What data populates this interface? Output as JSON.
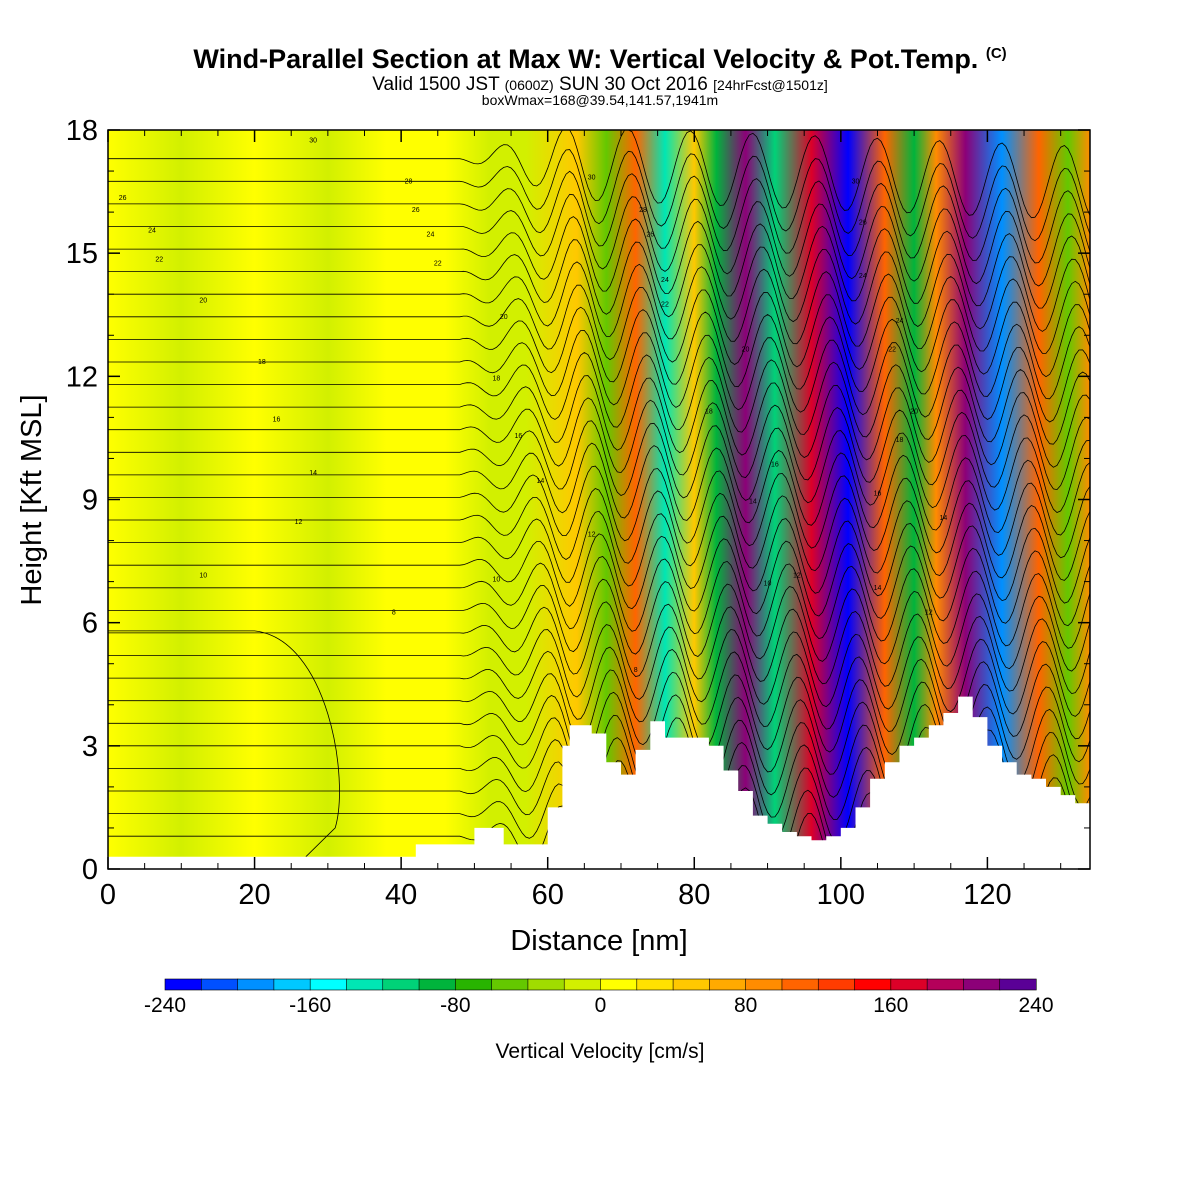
{
  "header": {
    "title": "Wind-Parallel Section at Max W: Vertical Velocity & Pot.Temp.",
    "copyright": "(C)",
    "valid_a": "Valid 1500 JST",
    "valid_utc": "(0600Z)",
    "valid_b": "SUN 30 Oct 2016",
    "forecast": "[24hrFcst@1501z]",
    "box_info": "boxWmax=168@39.54,141.57,1941m"
  },
  "chart_data": {
    "type": "heatmap",
    "xlabel": "Distance [nm]",
    "ylabel": "Height [Kft MSL]",
    "xlim": [
      0,
      134
    ],
    "ylim": [
      0,
      18
    ],
    "x_ticks": [
      0,
      20,
      40,
      60,
      80,
      100,
      120
    ],
    "y_ticks": [
      0,
      3,
      6,
      9,
      12,
      15,
      18
    ],
    "colorbar": {
      "label": "Vertical Velocity [cm/s]",
      "min": -240,
      "max": 240,
      "tick_values": [
        -240,
        -160,
        -80,
        0,
        80,
        160,
        240
      ],
      "tick_labels": [
        "-240",
        "-160",
        "-80",
        "0",
        "80",
        "160",
        "240"
      ],
      "colors": [
        "#0000ff",
        "#0050ff",
        "#0090ff",
        "#00c8ff",
        "#00ffff",
        "#00e6b4",
        "#00d278",
        "#00b43c",
        "#28b400",
        "#64c800",
        "#a0dc00",
        "#d2f000",
        "#ffff00",
        "#ffe100",
        "#ffc800",
        "#ffaa00",
        "#ff8c00",
        "#ff6400",
        "#ff3c00",
        "#ff0000",
        "#dc0028",
        "#b4005a",
        "#8c0078",
        "#5a0096"
      ]
    },
    "vertical_velocity_bands": [
      {
        "x": 57,
        "w": -20
      },
      {
        "x": 64,
        "w": 40
      },
      {
        "x": 68,
        "w": -60
      },
      {
        "x": 72,
        "w": 110
      },
      {
        "x": 76,
        "w": -130
      },
      {
        "x": 80,
        "w": 40
      },
      {
        "x": 83,
        "w": -90
      },
      {
        "x": 87,
        "w": 200
      },
      {
        "x": 91,
        "w": -110
      },
      {
        "x": 96,
        "w": 170
      },
      {
        "x": 101,
        "w": -240
      },
      {
        "x": 106,
        "w": 110
      },
      {
        "x": 110,
        "w": -100
      },
      {
        "x": 113,
        "w": 80
      },
      {
        "x": 117,
        "w": 200
      },
      {
        "x": 122,
        "w": -200
      },
      {
        "x": 127,
        "w": 110
      },
      {
        "x": 131,
        "w": -60
      },
      {
        "x": 134,
        "w": 80
      }
    ],
    "terrain": {
      "x": [
        0,
        40,
        42,
        48,
        50,
        54,
        58,
        60,
        62,
        63,
        66,
        68,
        70,
        72,
        74,
        76,
        78,
        80,
        82,
        84,
        86,
        88,
        90,
        92,
        94,
        96,
        98,
        100,
        102,
        104,
        106,
        108,
        110,
        112,
        114,
        116,
        118,
        120,
        122,
        124,
        126,
        128,
        130,
        132,
        134
      ],
      "height_kft": [
        0.3,
        0.3,
        0.6,
        0.6,
        1.0,
        0.6,
        0.6,
        1.5,
        3.0,
        3.5,
        3.3,
        2.6,
        2.3,
        2.9,
        3.6,
        3.2,
        3.2,
        3.2,
        3.0,
        2.4,
        1.9,
        1.3,
        1.1,
        0.9,
        0.8,
        0.7,
        0.8,
        1.0,
        1.5,
        2.2,
        2.6,
        3.0,
        3.2,
        3.5,
        3.8,
        4.2,
        3.7,
        3.0,
        2.6,
        2.3,
        2.2,
        2.0,
        1.8,
        1.6,
        1.3
      ]
    },
    "pot_temp_labels": [
      {
        "x": 2,
        "y": 16.3,
        "text": "26"
      },
      {
        "x": 6,
        "y": 15.5,
        "text": "24"
      },
      {
        "x": 7,
        "y": 14.8,
        "text": "22"
      },
      {
        "x": 13,
        "y": 13.8,
        "text": "20"
      },
      {
        "x": 28,
        "y": 17.7,
        "text": "30"
      },
      {
        "x": 41,
        "y": 16.7,
        "text": "28"
      },
      {
        "x": 42,
        "y": 16.0,
        "text": "26"
      },
      {
        "x": 44,
        "y": 15.4,
        "text": "24"
      },
      {
        "x": 45,
        "y": 14.7,
        "text": "22"
      },
      {
        "x": 54,
        "y": 13.4,
        "text": "20"
      },
      {
        "x": 21,
        "y": 12.3,
        "text": "18"
      },
      {
        "x": 53,
        "y": 11.9,
        "text": "18"
      },
      {
        "x": 23,
        "y": 10.9,
        "text": "16"
      },
      {
        "x": 56,
        "y": 10.5,
        "text": "16"
      },
      {
        "x": 28,
        "y": 9.6,
        "text": "14"
      },
      {
        "x": 59,
        "y": 9.4,
        "text": "14"
      },
      {
        "x": 26,
        "y": 8.4,
        "text": "12"
      },
      {
        "x": 66,
        "y": 8.1,
        "text": "12"
      },
      {
        "x": 13,
        "y": 7.1,
        "text": "10"
      },
      {
        "x": 53,
        "y": 7.0,
        "text": "10"
      },
      {
        "x": 39,
        "y": 6.2,
        "text": "8"
      },
      {
        "x": 72,
        "y": 4.8,
        "text": "8"
      },
      {
        "x": 66,
        "y": 16.8,
        "text": "30"
      },
      {
        "x": 73,
        "y": 16.0,
        "text": "28"
      },
      {
        "x": 74,
        "y": 15.4,
        "text": "26"
      },
      {
        "x": 76,
        "y": 14.3,
        "text": "24"
      },
      {
        "x": 76,
        "y": 13.7,
        "text": "22"
      },
      {
        "x": 87,
        "y": 12.6,
        "text": "20"
      },
      {
        "x": 82,
        "y": 11.1,
        "text": "18"
      },
      {
        "x": 91,
        "y": 9.8,
        "text": "16"
      },
      {
        "x": 88,
        "y": 8.9,
        "text": "14"
      },
      {
        "x": 90,
        "y": 6.9,
        "text": "10"
      },
      {
        "x": 94,
        "y": 7.1,
        "text": "12"
      },
      {
        "x": 102,
        "y": 16.7,
        "text": "30"
      },
      {
        "x": 103,
        "y": 15.7,
        "text": "26"
      },
      {
        "x": 103,
        "y": 14.4,
        "text": "24"
      },
      {
        "x": 108,
        "y": 13.3,
        "text": "24"
      },
      {
        "x": 107,
        "y": 12.6,
        "text": "22"
      },
      {
        "x": 110,
        "y": 11.1,
        "text": "20"
      },
      {
        "x": 108,
        "y": 10.4,
        "text": "18"
      },
      {
        "x": 105,
        "y": 9.1,
        "text": "16"
      },
      {
        "x": 105,
        "y": 6.8,
        "text": "14"
      },
      {
        "x": 114,
        "y": 8.5,
        "text": "14"
      },
      {
        "x": 112,
        "y": 6.2,
        "text": "12"
      }
    ]
  }
}
